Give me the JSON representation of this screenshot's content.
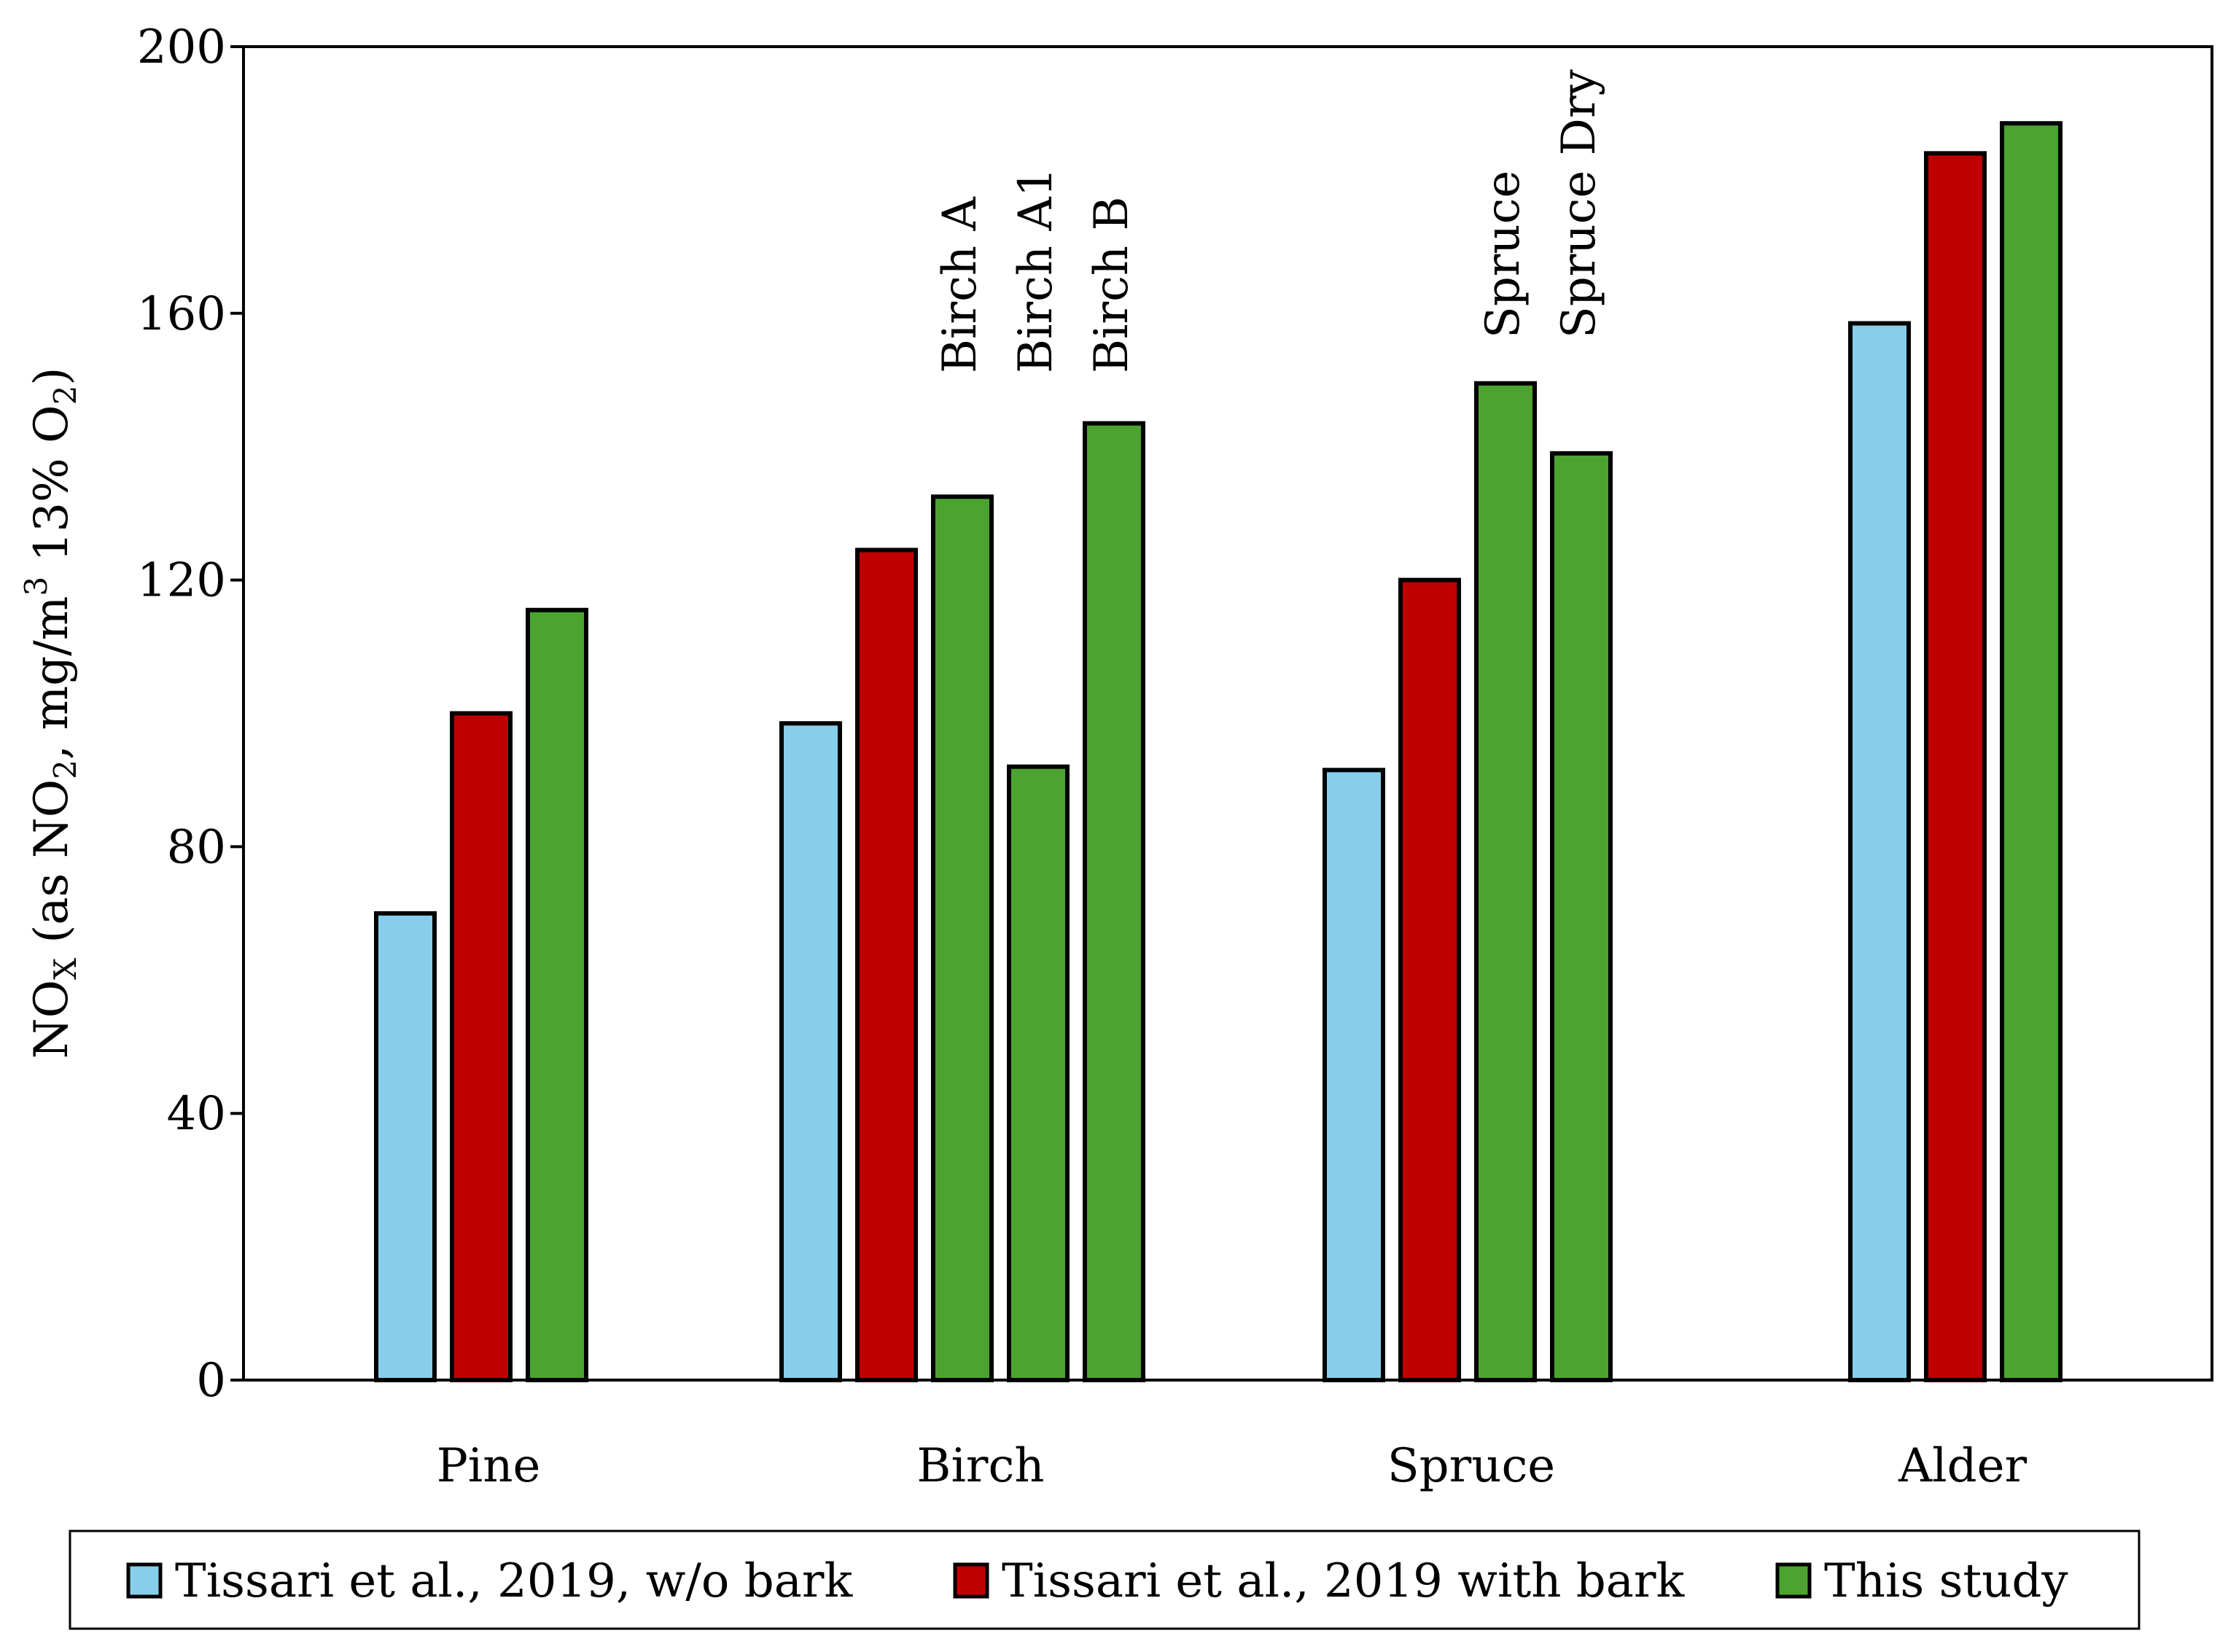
{
  "chart_data": {
    "type": "bar",
    "ylabel": {
      "main": "NO",
      "main_sub": "X",
      "paren_open": " (as NO",
      "paren_sub": "2",
      "mid": ", mg/m",
      "mid_sup": "3",
      "tail": " 13% O",
      "tail_sub": "2",
      "close": ")"
    },
    "ylim": [
      0,
      200
    ],
    "yticks": [
      0,
      40,
      80,
      120,
      160,
      200
    ],
    "grid": false,
    "legend_position": "bottom",
    "series_colors": {
      "w/o bark": "#87CEEB",
      "with bark": "#C00000",
      "this study": "#4CA32F"
    },
    "legend": [
      {
        "label": "Tissari et al., 2019, w/o bark",
        "key": "w/o bark"
      },
      {
        "label": "Tissari et al., 2019 with bark",
        "key": "with bark"
      },
      {
        "label": "This study",
        "key": "this study"
      }
    ],
    "groups": [
      {
        "name": "Pine",
        "bars": [
          {
            "series": "w/o bark",
            "value": 70
          },
          {
            "series": "with bark",
            "value": 100
          },
          {
            "series": "this study",
            "value": 115.5
          }
        ]
      },
      {
        "name": "Birch",
        "bars": [
          {
            "series": "w/o bark",
            "value": 98.5
          },
          {
            "series": "with bark",
            "value": 124.5
          },
          {
            "series": "this study",
            "value": 132.5,
            "label": "Birch A"
          },
          {
            "series": "this study",
            "value": 92,
            "label": "Birch A1"
          },
          {
            "series": "this study",
            "value": 143.5,
            "label": "Birch B"
          }
        ]
      },
      {
        "name": "Spruce",
        "bars": [
          {
            "series": "w/o bark",
            "value": 91.5
          },
          {
            "series": "with bark",
            "value": 120
          },
          {
            "series": "this study",
            "value": 149.5,
            "label": "Spruce"
          },
          {
            "series": "this study",
            "value": 139,
            "label": "Spruce Dry"
          }
        ]
      },
      {
        "name": "Alder",
        "bars": [
          {
            "series": "w/o bark",
            "value": 158.5
          },
          {
            "series": "with bark",
            "value": 184
          },
          {
            "series": "this study",
            "value": 188.5
          }
        ]
      }
    ]
  }
}
